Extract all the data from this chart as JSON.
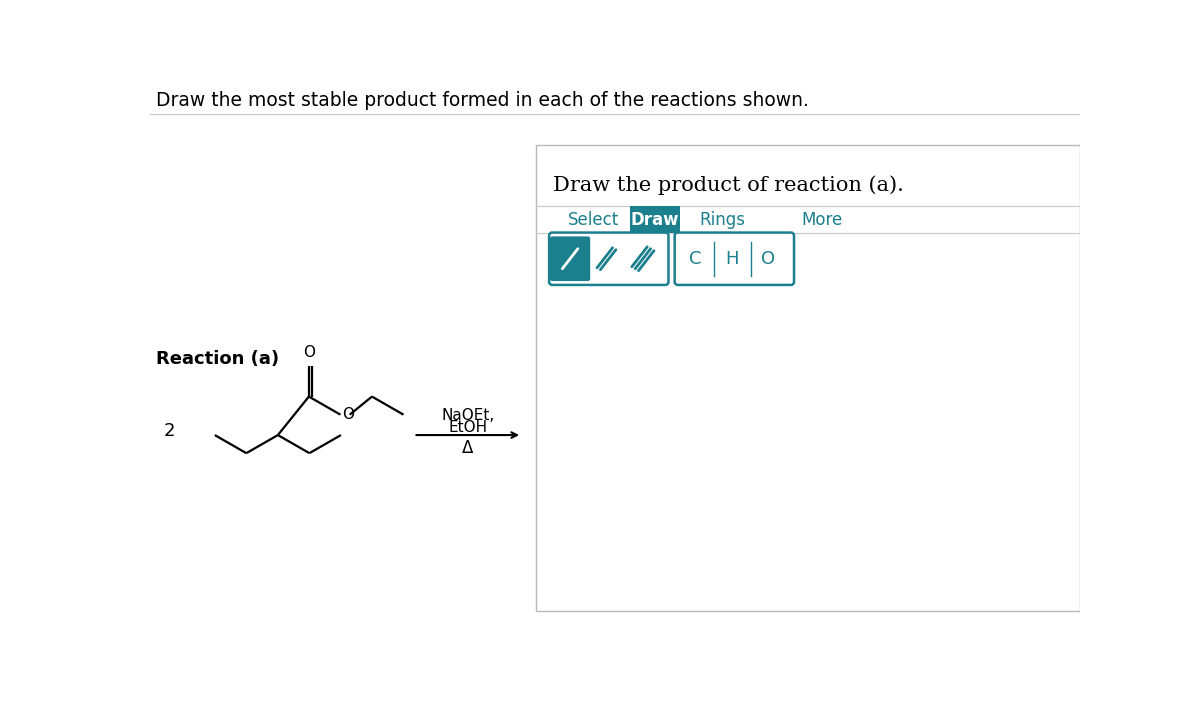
{
  "title_text": "Draw the most stable product formed in each of the reactions shown.",
  "reaction_label": "Reaction (a)",
  "coefficient": "2",
  "reagents_line1": "NaOEt,",
  "reagents_line2": "EtOH",
  "reagents_line3": "Δ",
  "panel_title": "Draw the product of reaction (a).",
  "tab_labels": [
    "Select",
    "Draw",
    "Rings",
    "More"
  ],
  "active_tab": "Draw",
  "teal_color": "#1b7f8e",
  "bg_white": "#ffffff",
  "text_color": "#000000",
  "separator_color": "#c8c8c8",
  "panel_border_color": "#b8b8b8"
}
